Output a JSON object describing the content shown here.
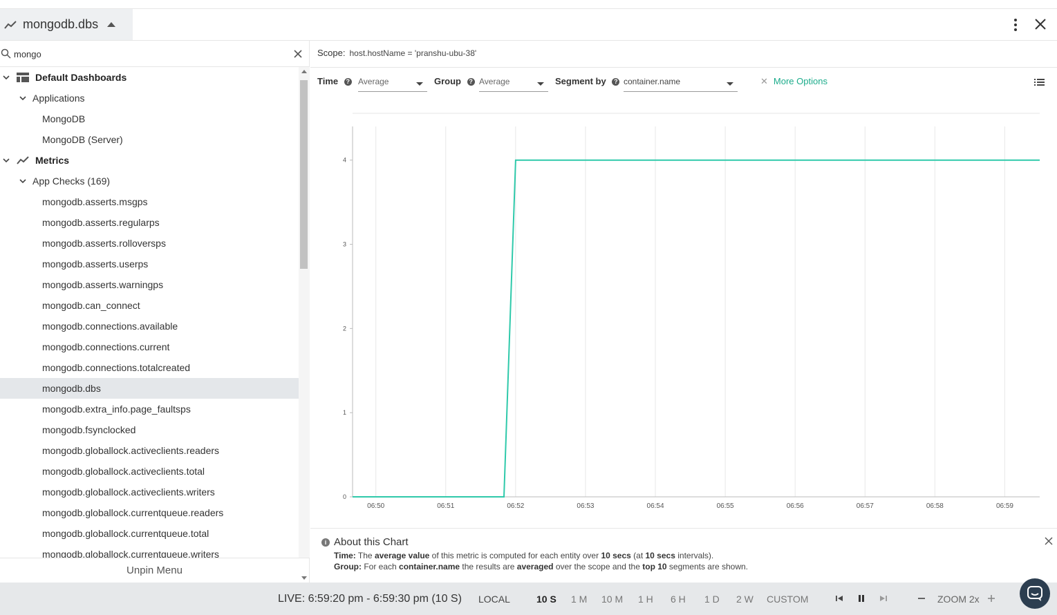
{
  "header": {
    "title": "mongodb.dbs"
  },
  "search": {
    "value": "mongo",
    "placeholder": ""
  },
  "tree": {
    "default_dashboards": "Default Dashboards",
    "applications": "Applications",
    "apps": [
      "MongoDB",
      "MongoDB (Server)"
    ],
    "metrics": "Metrics",
    "app_checks": "App Checks (169)",
    "items": [
      "mongodb.asserts.msgps",
      "mongodb.asserts.regularps",
      "mongodb.asserts.rolloversps",
      "mongodb.asserts.userps",
      "mongodb.asserts.warningps",
      "mongodb.can_connect",
      "mongodb.connections.available",
      "mongodb.connections.current",
      "mongodb.connections.totalcreated",
      "mongodb.dbs",
      "mongodb.extra_info.page_faultsps",
      "mongodb.fsynclocked",
      "mongodb.globallock.activeclients.readers",
      "mongodb.globallock.activeclients.total",
      "mongodb.globallock.activeclients.writers",
      "mongodb.globallock.currentqueue.readers",
      "mongodb.globallock.currentqueue.total",
      "mongodb.globallock.currentqueue.writers"
    ],
    "selected": "mongodb.dbs"
  },
  "unpin": "Unpin Menu",
  "scope": {
    "label": "Scope:",
    "value": "host.hostName = 'pranshu-ubu-38'"
  },
  "controls": {
    "time_label": "Time",
    "time_value": "Average",
    "group_label": "Group",
    "group_value": "Average",
    "segment_label": "Segment by",
    "segment_value": "container.name",
    "more_options": "More Options"
  },
  "chart_data": {
    "type": "line",
    "x": [
      "06:49:40",
      "06:50",
      "06:51",
      "06:51:50",
      "06:52",
      "06:53",
      "06:54",
      "06:55",
      "06:56",
      "06:57",
      "06:58",
      "06:59",
      "06:59:30"
    ],
    "xticks": [
      "06:50",
      "06:51",
      "06:52",
      "06:53",
      "06:54",
      "06:55",
      "06:56",
      "06:57",
      "06:58",
      "06:59"
    ],
    "series": [
      {
        "values": [
          0,
          0,
          0,
          0,
          4,
          4,
          4,
          4,
          4,
          4,
          4,
          4,
          4
        ]
      }
    ],
    "yticks": [
      "0",
      "1",
      "2",
      "3",
      "4"
    ],
    "ylim": [
      0,
      4.4
    ],
    "grid": "vertical",
    "color": "#2ec9aa"
  },
  "about": {
    "title": "About this Chart",
    "time_label": "Time:",
    "time_text": [
      " The ",
      "average value",
      " of this metric is computed for each entity over ",
      "10 secs",
      " (at ",
      "10 secs",
      " intervals)."
    ],
    "group_label": "Group:",
    "group_text": [
      " For each ",
      "container.name",
      " the results are ",
      "averaged",
      " over the scope and the ",
      "top 10",
      " segments are shown."
    ]
  },
  "footer": {
    "live": "LIVE: 6:59:20 pm - 6:59:30 pm (10 S)",
    "timezone": "LOCAL",
    "ranges": [
      "10 S",
      "1 M",
      "10 M",
      "1 H",
      "6 H",
      "1 D",
      "2 W",
      "CUSTOM"
    ],
    "active_range": "10 S",
    "zoom": "ZOOM 2x"
  }
}
